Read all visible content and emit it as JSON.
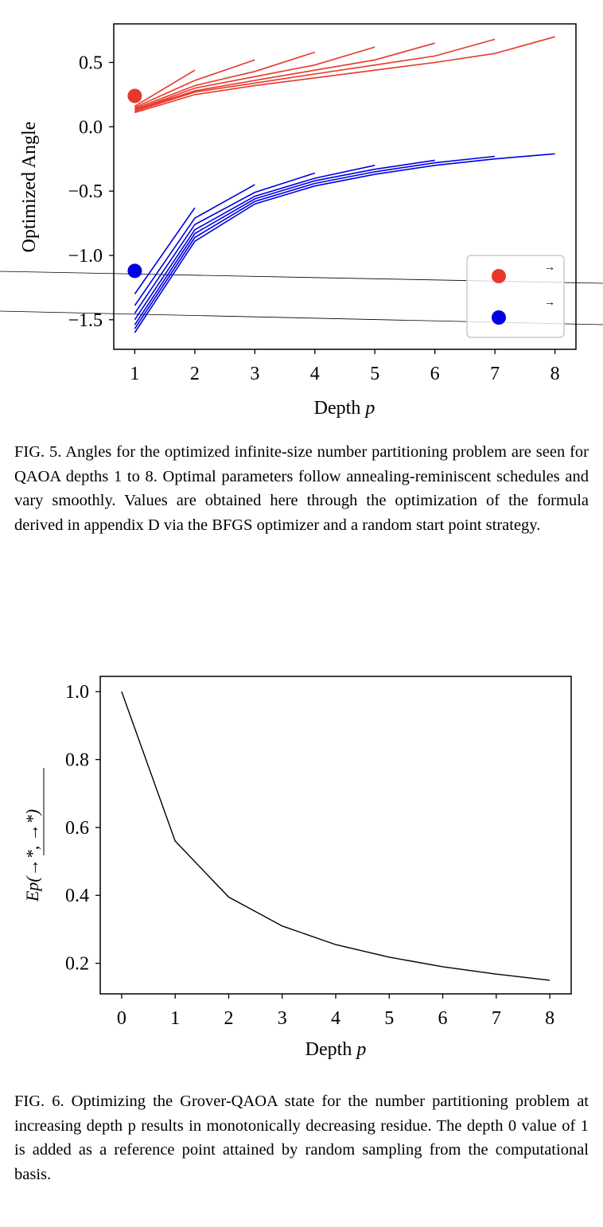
{
  "figure5": {
    "caption": "FIG. 5. Angles for the optimized infinite-size number partitioning problem are seen for QAOA depths 1 to 8. Optimal parameters follow annealing-reminiscent schedules and vary smoothly. Values are obtained here through the optimization of the formula derived in appendix D via the BFGS optimizer and a random start point strategy.",
    "legend_entries": [
      "→",
      "→"
    ]
  },
  "figure6": {
    "caption": "FIG. 6. Optimizing the Grover-QAOA state for the number partitioning problem at increasing depth p results in monotonically decreasing residue. The depth 0 value of 1 is added as a reference point attained by random sampling from the computational basis."
  },
  "chart_data": [
    {
      "type": "line",
      "xlabel": "Depth p",
      "ylabel": "Optimized Angle",
      "xlim": [
        0.65,
        8.35
      ],
      "ylim": [
        -1.73,
        0.8
      ],
      "xticks": [
        1,
        2,
        3,
        4,
        5,
        6,
        7,
        8
      ],
      "yticks": [
        0.5,
        0.0,
        -0.5,
        -1.0,
        -1.5
      ],
      "ytick_labels": [
        "0.5",
        "0.0",
        "−0.5",
        "−1.0",
        "−1.5"
      ],
      "grid": false,
      "legend": "bottom-right",
      "colors": {
        "red": "#e8382b",
        "blue": "#0000e0"
      },
      "red_series": [
        {
          "x": [
            1,
            2
          ],
          "values": [
            0.16,
            0.44
          ]
        },
        {
          "x": [
            1,
            2,
            3
          ],
          "values": [
            0.15,
            0.36,
            0.52
          ]
        },
        {
          "x": [
            1,
            2,
            3,
            4
          ],
          "values": [
            0.14,
            0.32,
            0.43,
            0.58
          ]
        },
        {
          "x": [
            1,
            2,
            3,
            4,
            5
          ],
          "values": [
            0.13,
            0.3,
            0.39,
            0.48,
            0.62
          ]
        },
        {
          "x": [
            1,
            2,
            3,
            4,
            5,
            6
          ],
          "values": [
            0.13,
            0.28,
            0.36,
            0.44,
            0.52,
            0.65
          ]
        },
        {
          "x": [
            1,
            2,
            3,
            4,
            5,
            6,
            7
          ],
          "values": [
            0.12,
            0.27,
            0.34,
            0.41,
            0.48,
            0.55,
            0.68
          ]
        },
        {
          "x": [
            1,
            2,
            3,
            4,
            5,
            6,
            7,
            8
          ],
          "values": [
            0.11,
            0.25,
            0.32,
            0.38,
            0.44,
            0.5,
            0.57,
            0.7
          ]
        }
      ],
      "blue_series": [
        {
          "x": [
            1,
            2
          ],
          "values": [
            -1.3,
            -0.63
          ]
        },
        {
          "x": [
            1,
            2,
            3
          ],
          "values": [
            -1.39,
            -0.71,
            -0.45
          ]
        },
        {
          "x": [
            1,
            2,
            3,
            4
          ],
          "values": [
            -1.45,
            -0.76,
            -0.51,
            -0.36
          ]
        },
        {
          "x": [
            1,
            2,
            3,
            4,
            5
          ],
          "values": [
            -1.5,
            -0.8,
            -0.54,
            -0.4,
            -0.3
          ]
        },
        {
          "x": [
            1,
            2,
            3,
            4,
            5,
            6
          ],
          "values": [
            -1.54,
            -0.83,
            -0.56,
            -0.42,
            -0.33,
            -0.26
          ]
        },
        {
          "x": [
            1,
            2,
            3,
            4,
            5,
            6,
            7
          ],
          "values": [
            -1.57,
            -0.86,
            -0.58,
            -0.44,
            -0.35,
            -0.28,
            -0.23
          ]
        },
        {
          "x": [
            1,
            2,
            3,
            4,
            5,
            6,
            7,
            8
          ],
          "values": [
            -1.6,
            -0.89,
            -0.6,
            -0.46,
            -0.37,
            -0.3,
            -0.25,
            -0.21
          ]
        }
      ],
      "markers": [
        {
          "color": "red",
          "x": 1,
          "y": 0.24
        },
        {
          "color": "blue",
          "x": 1,
          "y": -1.12
        }
      ]
    },
    {
      "type": "line",
      "xlabel": "Depth p",
      "ylabel": "Ep(→*, →*)",
      "xlim": [
        -0.4,
        8.4
      ],
      "ylim": [
        0.11,
        1.045
      ],
      "xticks": [
        0,
        1,
        2,
        3,
        4,
        5,
        6,
        7,
        8
      ],
      "yticks": [
        1.0,
        0.8,
        0.6,
        0.4,
        0.2
      ],
      "ytick_labels": [
        "1.0",
        "0.8",
        "0.6",
        "0.4",
        "0.2"
      ],
      "grid": false,
      "color": "#000000",
      "x": [
        0,
        1,
        2,
        3,
        4,
        5,
        6,
        7,
        8
      ],
      "values": [
        1.0,
        0.56,
        0.395,
        0.31,
        0.255,
        0.218,
        0.19,
        0.168,
        0.15
      ]
    }
  ]
}
